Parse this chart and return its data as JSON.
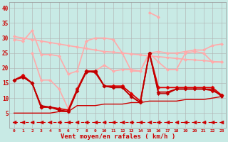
{
  "x": [
    0,
    1,
    2,
    3,
    4,
    5,
    6,
    7,
    8,
    9,
    10,
    11,
    12,
    13,
    14,
    15,
    16,
    17,
    18,
    19,
    20,
    21,
    22,
    23
  ],
  "background_color": "#c8eae5",
  "grid_color": "#b0b0b0",
  "xlabel": "Vent moyen/en rafales ( km/h )",
  "xlabel_color": "#cc0000",
  "ylim": [
    0,
    42
  ],
  "xlim": [
    -0.5,
    23.5
  ],
  "yticks": [
    5,
    10,
    15,
    20,
    25,
    30,
    35,
    40
  ],
  "series": [
    {
      "y": [
        30.5,
        30.0,
        29.5,
        29.0,
        28.5,
        28.0,
        27.5,
        27.0,
        26.5,
        26.0,
        25.5,
        25.3,
        25.0,
        24.7,
        24.4,
        24.0,
        23.8,
        23.5,
        23.2,
        22.9,
        22.7,
        22.5,
        22.2,
        22.0
      ],
      "color": "#ffaaaa",
      "lw": 1.2,
      "marker": "D",
      "ms": 2.0
    },
    {
      "y": [
        29.5,
        29.0,
        32.5,
        24.5,
        24.5,
        24.0,
        18.0,
        19.0,
        29.0,
        30.0,
        30.0,
        29.5,
        25.0,
        19.0,
        19.0,
        25.0,
        25.5,
        25.0,
        25.0,
        25.5,
        26.0,
        26.0,
        27.5,
        28.0
      ],
      "color": "#ffaaaa",
      "lw": 1.2,
      "marker": "D",
      "ms": 2.0
    },
    {
      "y": [
        null,
        null,
        null,
        null,
        null,
        null,
        null,
        null,
        null,
        null,
        null,
        null,
        null,
        null,
        null,
        38.5,
        37.0,
        null,
        null,
        null,
        null,
        null,
        null,
        null
      ],
      "color": "#ffaaaa",
      "lw": 1.2,
      "marker": "D",
      "ms": 2.0
    },
    {
      "y": [
        null,
        null,
        25.0,
        16.0,
        16.0,
        13.0,
        6.5,
        12.5,
        18.5,
        19.0,
        21.0,
        19.0,
        19.5,
        19.5,
        19.0,
        25.0,
        22.0,
        19.5,
        19.5,
        25.0,
        25.5,
        25.0,
        22.0,
        22.0
      ],
      "color": "#ffaaaa",
      "lw": 1.2,
      "marker": "D",
      "ms": 2.0
    },
    {
      "y": [
        16.0,
        17.5,
        15.0,
        7.0,
        7.0,
        6.5,
        6.0,
        13.0,
        19.0,
        19.0,
        14.0,
        14.0,
        14.0,
        11.5,
        9.0,
        25.0,
        13.5,
        13.5,
        13.5,
        13.5,
        13.5,
        13.5,
        13.5,
        11.0
      ],
      "color": "#dd0000",
      "lw": 1.3,
      "marker": "D",
      "ms": 2.5
    },
    {
      "y": [
        16.0,
        17.0,
        15.0,
        7.0,
        7.0,
        6.0,
        5.5,
        12.5,
        19.0,
        18.5,
        14.0,
        13.5,
        13.5,
        10.5,
        8.5,
        25.0,
        12.0,
        12.0,
        13.0,
        13.0,
        13.0,
        13.0,
        12.5,
        11.0
      ],
      "color": "#cc0000",
      "lw": 1.3,
      "marker": "D",
      "ms": 2.5
    },
    {
      "y": [
        16.0,
        17.0,
        15.0,
        7.5,
        7.0,
        6.0,
        5.5,
        12.5,
        18.5,
        19.0,
        14.0,
        13.5,
        13.5,
        10.5,
        8.5,
        25.0,
        11.5,
        11.5,
        13.0,
        13.0,
        13.0,
        13.0,
        13.0,
        10.5
      ],
      "color": "#bb0000",
      "lw": 1.0,
      "marker": "D",
      "ms": 2.0
    },
    {
      "y": [
        5.0,
        5.0,
        5.0,
        5.0,
        5.0,
        5.5,
        5.5,
        7.5,
        7.5,
        7.5,
        8.0,
        8.0,
        8.0,
        8.5,
        8.5,
        9.0,
        9.0,
        9.0,
        9.0,
        9.5,
        9.5,
        9.5,
        10.0,
        10.5
      ],
      "color": "#cc0000",
      "lw": 1.0,
      "marker": null,
      "ms": 0
    },
    {
      "y": [
        2.0,
        2.0,
        2.0,
        2.0,
        2.0,
        2.0,
        2.0,
        2.0,
        2.0,
        2.0,
        2.0,
        2.0,
        2.0,
        2.0,
        2.0,
        2.0,
        2.0,
        2.0,
        2.0,
        2.0,
        2.0,
        2.0,
        2.0,
        2.0
      ],
      "color": "#cc0000",
      "lw": 0.8,
      "marker": "<",
      "ms": 3.5,
      "dashes": [
        4,
        3
      ]
    }
  ]
}
